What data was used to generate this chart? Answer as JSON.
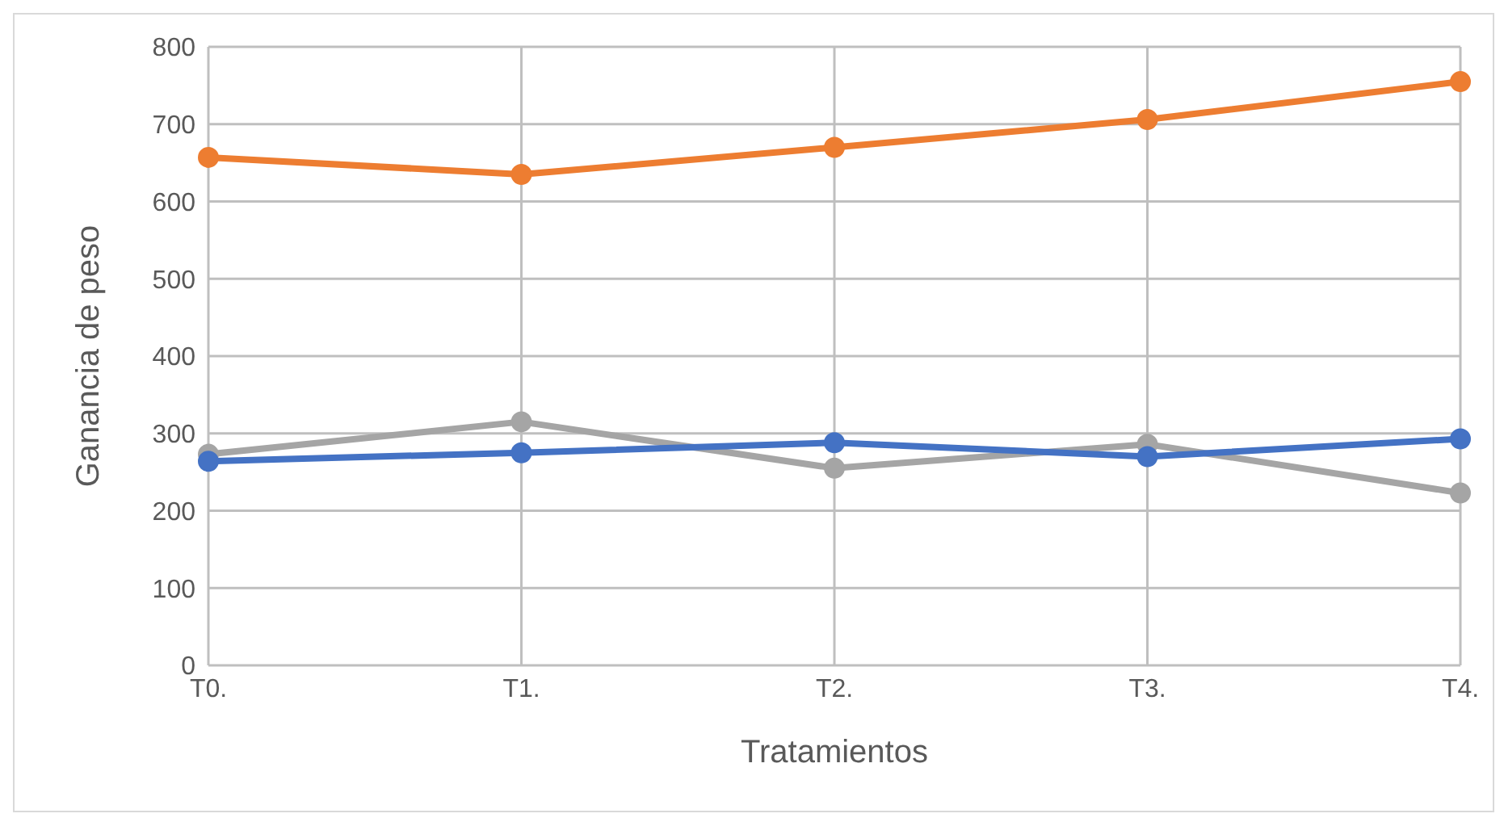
{
  "chart_data": {
    "type": "line",
    "xlabel": "Tratamientos",
    "ylabel": "Ganancia de peso",
    "categories": [
      "T0.",
      "T1.",
      "T2.",
      "T3.",
      "T4."
    ],
    "series": [
      {
        "color": "#4472c4",
        "values": [
          264,
          275,
          288,
          270,
          293
        ]
      },
      {
        "color": "#ed7d31",
        "values": [
          657,
          635,
          670,
          706,
          755
        ]
      },
      {
        "color": "#a5a5a5",
        "values": [
          273,
          315,
          255,
          286,
          223
        ]
      }
    ],
    "ylim": [
      0,
      800
    ],
    "yticks": [
      0,
      100,
      200,
      300,
      400,
      500,
      600,
      700,
      800
    ],
    "grid": true,
    "marker": "circle",
    "line_style": "solid",
    "legend": false
  }
}
